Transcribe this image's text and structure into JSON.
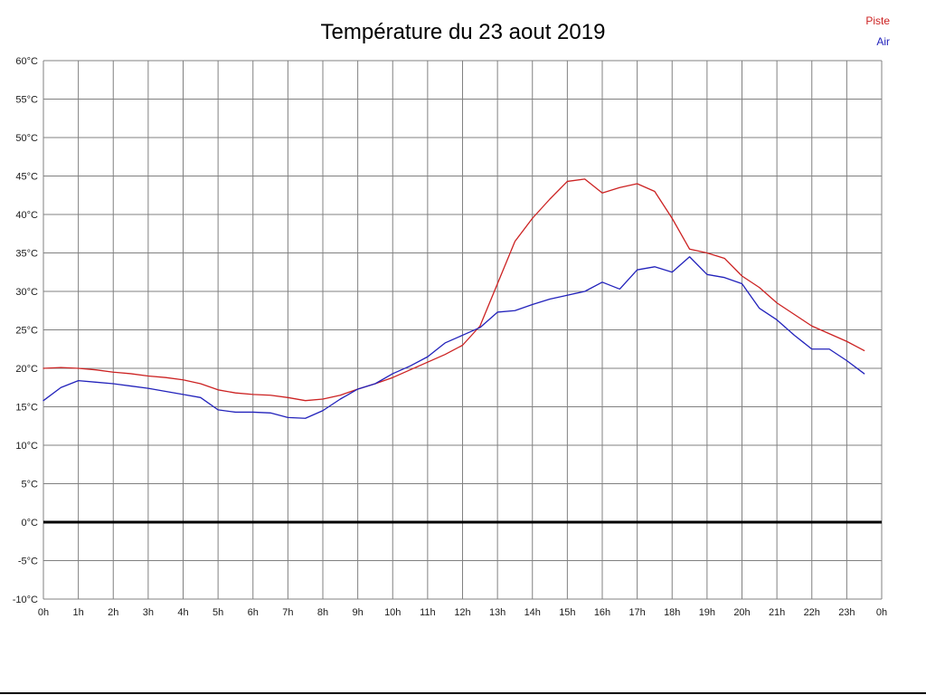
{
  "title": "Température du 23 aout 2019",
  "legend": [
    {
      "label": "Piste",
      "color": "#cc2222"
    },
    {
      "label": "Air",
      "color": "#2222bb"
    }
  ],
  "chart_data": {
    "type": "line",
    "title": "Température du 23 aout 2019",
    "xlabel": "",
    "ylabel": "",
    "ylim": [
      -10,
      60
    ],
    "ytick_step": 5,
    "ytick_suffix": "°C",
    "grid": true,
    "grid_color": "#808080",
    "zero_line_color": "#000000",
    "tick_label_color": "#1a1a1a",
    "legend_position": "top-right",
    "xtick_labels": [
      "0h",
      "1h",
      "2h",
      "3h",
      "4h",
      "5h",
      "6h",
      "7h",
      "8h",
      "9h",
      "10h",
      "11h",
      "12h",
      "13h",
      "14h",
      "15h",
      "16h",
      "17h",
      "18h",
      "19h",
      "20h",
      "21h",
      "22h",
      "23h",
      "0h"
    ],
    "x": [
      0,
      0.5,
      1,
      1.5,
      2,
      2.5,
      3,
      3.5,
      4,
      4.5,
      5,
      5.5,
      6,
      6.5,
      7,
      7.5,
      8,
      8.5,
      9,
      9.5,
      10,
      10.5,
      11,
      11.5,
      12,
      12.5,
      13,
      13.5,
      14,
      14.5,
      15,
      15.5,
      16,
      16.5,
      17,
      17.5,
      18,
      18.5,
      19,
      19.5,
      20,
      20.5,
      21,
      21.5,
      22,
      22.5,
      23,
      23.5
    ],
    "series": [
      {
        "name": "Piste",
        "color": "#cc2222",
        "values": [
          20,
          20.1,
          20,
          19.8,
          19.5,
          19.3,
          19,
          18.8,
          18.5,
          18,
          17.2,
          16.8,
          16.6,
          16.5,
          16.2,
          15.8,
          16,
          16.5,
          17.3,
          18,
          18.8,
          19.8,
          20.8,
          21.8,
          23,
          25.5,
          31,
          36.5,
          39.5,
          42,
          44.3,
          44.6,
          42.8,
          43.5,
          44,
          43,
          39.5,
          35.5,
          35,
          34.3,
          32,
          30.5,
          28.5,
          27,
          25.5,
          24.5,
          23.5,
          22.3
        ]
      },
      {
        "name": "Air",
        "color": "#2222bb",
        "values": [
          15.8,
          17.5,
          18.4,
          18.2,
          18,
          17.7,
          17.4,
          17,
          16.6,
          16.2,
          14.6,
          14.3,
          14.3,
          14.2,
          13.6,
          13.5,
          14.5,
          16,
          17.3,
          18,
          19.3,
          20.3,
          21.5,
          23.3,
          24.3,
          25.3,
          27.3,
          27.5,
          28.3,
          29,
          29.5,
          30,
          31.2,
          30.3,
          32.8,
          33.2,
          32.5,
          34.5,
          32.2,
          31.8,
          31,
          27.8,
          26.3,
          24.3,
          22.5,
          22.5,
          21,
          19.3
        ]
      }
    ]
  }
}
